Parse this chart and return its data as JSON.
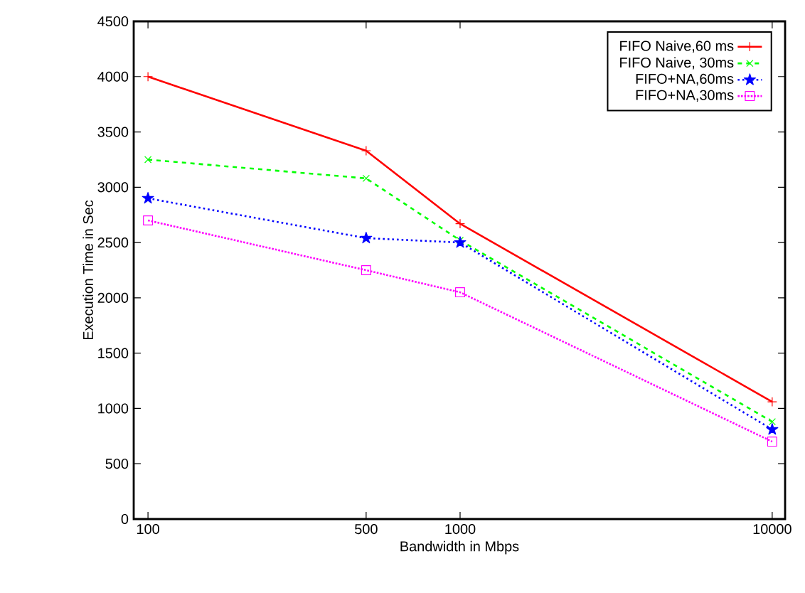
{
  "chart_data": {
    "type": "line",
    "xlabel": "Bandwidth in Mbps",
    "ylabel": "Execution Time in Sec",
    "log": "x",
    "x": [
      100,
      500,
      1000,
      10000
    ],
    "xlim": [
      90,
      11000
    ],
    "xticks": [
      100,
      500,
      1000,
      10000
    ],
    "ylim": [
      0,
      4500
    ],
    "yticks": [
      0,
      500,
      1000,
      1500,
      2000,
      2500,
      3000,
      3500,
      4000,
      4500
    ],
    "grid": false,
    "legend": "top right",
    "series": [
      {
        "name": "FIFO Naive,60 ms",
        "color": "#ff0000",
        "values": [
          4000,
          3330,
          2670,
          1060
        ],
        "marker": "cross",
        "line_style": "solid"
      },
      {
        "name": "FIFO Naive, 30ms",
        "color": "#00ff00",
        "values": [
          3250,
          3080,
          2520,
          880
        ],
        "marker": "x",
        "line_style": "dashed"
      },
      {
        "name": "FIFO+NA,60ms",
        "color": "#0000ff",
        "values": [
          2900,
          2540,
          2500,
          810
        ],
        "marker": "star",
        "line_style": "dotted"
      },
      {
        "name": "FIFO+NA,30ms",
        "color": "#ff00ff",
        "values": [
          2700,
          2250,
          2050,
          700
        ],
        "marker": "square",
        "line_style": "densely dotted"
      }
    ]
  }
}
